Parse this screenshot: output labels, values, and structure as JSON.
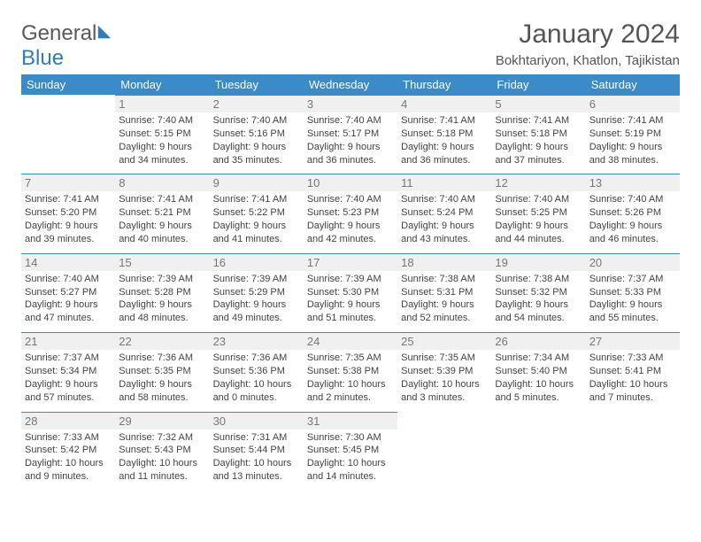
{
  "header": {
    "logo_general": "General",
    "logo_blue": "Blue",
    "month_title": "January 2024",
    "location": "Bokhtariyon, Khatlon, Tajikistan"
  },
  "palette": {
    "header_bg": "#3b8bc8",
    "header_text": "#ffffff",
    "daynum_bg": "#f0f0f0",
    "daynum_text": "#777777",
    "divider": "#3b8bc8",
    "body_text": "#444444",
    "title_text": "#555555"
  },
  "weekdays": [
    "Sunday",
    "Monday",
    "Tuesday",
    "Wednesday",
    "Thursday",
    "Friday",
    "Saturday"
  ],
  "start_offset": 1,
  "days": [
    {
      "n": 1,
      "sunrise": "7:40 AM",
      "sunset": "5:15 PM",
      "daylight": "9 hours and 34 minutes."
    },
    {
      "n": 2,
      "sunrise": "7:40 AM",
      "sunset": "5:16 PM",
      "daylight": "9 hours and 35 minutes."
    },
    {
      "n": 3,
      "sunrise": "7:40 AM",
      "sunset": "5:17 PM",
      "daylight": "9 hours and 36 minutes."
    },
    {
      "n": 4,
      "sunrise": "7:41 AM",
      "sunset": "5:18 PM",
      "daylight": "9 hours and 36 minutes."
    },
    {
      "n": 5,
      "sunrise": "7:41 AM",
      "sunset": "5:18 PM",
      "daylight": "9 hours and 37 minutes."
    },
    {
      "n": 6,
      "sunrise": "7:41 AM",
      "sunset": "5:19 PM",
      "daylight": "9 hours and 38 minutes."
    },
    {
      "n": 7,
      "sunrise": "7:41 AM",
      "sunset": "5:20 PM",
      "daylight": "9 hours and 39 minutes."
    },
    {
      "n": 8,
      "sunrise": "7:41 AM",
      "sunset": "5:21 PM",
      "daylight": "9 hours and 40 minutes."
    },
    {
      "n": 9,
      "sunrise": "7:41 AM",
      "sunset": "5:22 PM",
      "daylight": "9 hours and 41 minutes."
    },
    {
      "n": 10,
      "sunrise": "7:40 AM",
      "sunset": "5:23 PM",
      "daylight": "9 hours and 42 minutes."
    },
    {
      "n": 11,
      "sunrise": "7:40 AM",
      "sunset": "5:24 PM",
      "daylight": "9 hours and 43 minutes."
    },
    {
      "n": 12,
      "sunrise": "7:40 AM",
      "sunset": "5:25 PM",
      "daylight": "9 hours and 44 minutes."
    },
    {
      "n": 13,
      "sunrise": "7:40 AM",
      "sunset": "5:26 PM",
      "daylight": "9 hours and 46 minutes."
    },
    {
      "n": 14,
      "sunrise": "7:40 AM",
      "sunset": "5:27 PM",
      "daylight": "9 hours and 47 minutes."
    },
    {
      "n": 15,
      "sunrise": "7:39 AM",
      "sunset": "5:28 PM",
      "daylight": "9 hours and 48 minutes."
    },
    {
      "n": 16,
      "sunrise": "7:39 AM",
      "sunset": "5:29 PM",
      "daylight": "9 hours and 49 minutes."
    },
    {
      "n": 17,
      "sunrise": "7:39 AM",
      "sunset": "5:30 PM",
      "daylight": "9 hours and 51 minutes."
    },
    {
      "n": 18,
      "sunrise": "7:38 AM",
      "sunset": "5:31 PM",
      "daylight": "9 hours and 52 minutes."
    },
    {
      "n": 19,
      "sunrise": "7:38 AM",
      "sunset": "5:32 PM",
      "daylight": "9 hours and 54 minutes."
    },
    {
      "n": 20,
      "sunrise": "7:37 AM",
      "sunset": "5:33 PM",
      "daylight": "9 hours and 55 minutes."
    },
    {
      "n": 21,
      "sunrise": "7:37 AM",
      "sunset": "5:34 PM",
      "daylight": "9 hours and 57 minutes."
    },
    {
      "n": 22,
      "sunrise": "7:36 AM",
      "sunset": "5:35 PM",
      "daylight": "9 hours and 58 minutes."
    },
    {
      "n": 23,
      "sunrise": "7:36 AM",
      "sunset": "5:36 PM",
      "daylight": "10 hours and 0 minutes."
    },
    {
      "n": 24,
      "sunrise": "7:35 AM",
      "sunset": "5:38 PM",
      "daylight": "10 hours and 2 minutes."
    },
    {
      "n": 25,
      "sunrise": "7:35 AM",
      "sunset": "5:39 PM",
      "daylight": "10 hours and 3 minutes."
    },
    {
      "n": 26,
      "sunrise": "7:34 AM",
      "sunset": "5:40 PM",
      "daylight": "10 hours and 5 minutes."
    },
    {
      "n": 27,
      "sunrise": "7:33 AM",
      "sunset": "5:41 PM",
      "daylight": "10 hours and 7 minutes."
    },
    {
      "n": 28,
      "sunrise": "7:33 AM",
      "sunset": "5:42 PM",
      "daylight": "10 hours and 9 minutes."
    },
    {
      "n": 29,
      "sunrise": "7:32 AM",
      "sunset": "5:43 PM",
      "daylight": "10 hours and 11 minutes."
    },
    {
      "n": 30,
      "sunrise": "7:31 AM",
      "sunset": "5:44 PM",
      "daylight": "10 hours and 13 minutes."
    },
    {
      "n": 31,
      "sunrise": "7:30 AM",
      "sunset": "5:45 PM",
      "daylight": "10 hours and 14 minutes."
    }
  ],
  "labels": {
    "sunrise": "Sunrise:",
    "sunset": "Sunset:",
    "daylight": "Daylight:"
  }
}
